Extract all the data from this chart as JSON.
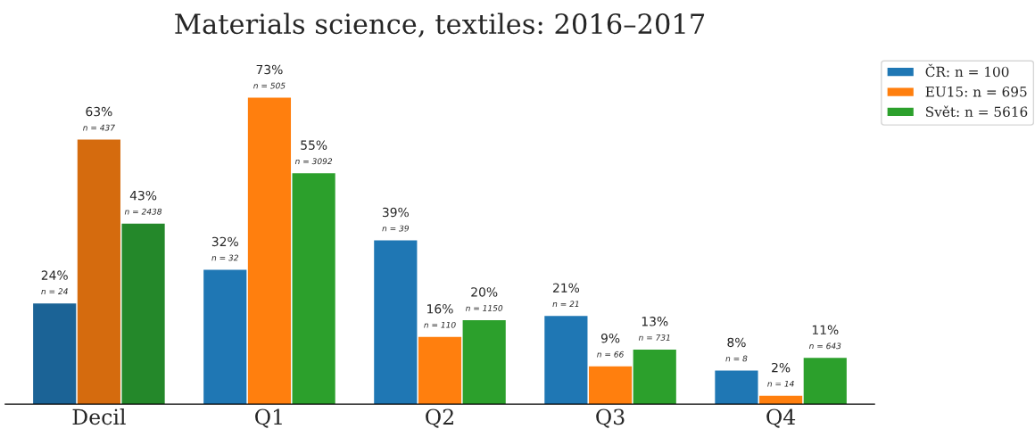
{
  "chart_data": {
    "type": "bar",
    "title": "Materials science, textiles: 2016–2017",
    "categories": [
      "Decil",
      "Q1",
      "Q2",
      "Q3",
      "Q4"
    ],
    "series": [
      {
        "name": "ČR: n = 100",
        "color": "#1f77b4",
        "colors": [
          "#1b6396",
          "#1f77b4",
          "#1f77b4",
          "#1f77b4",
          "#1f77b4"
        ],
        "values": [
          24,
          32,
          39,
          21,
          8
        ],
        "value_labels": [
          "24%\nn = 24",
          "32%\nn = 32",
          "39%\nn = 39",
          "21%\nn = 21",
          "8%\nn = 8"
        ]
      },
      {
        "name": "EU15: n = 695",
        "color": "#ff7f0e",
        "colors": [
          "#d56b0e",
          "#ff7f0e",
          "#ff7f0e",
          "#ff7f0e",
          "#ff7f0e"
        ],
        "values": [
          63,
          73,
          16,
          9,
          2
        ],
        "value_labels": [
          "63%\nn = 437",
          "73%\nn = 505",
          "16%\nn = 110",
          "9%\nn = 66",
          "2%\nn = 14"
        ]
      },
      {
        "name": "Svět: n = 5616",
        "color": "#2ca02c",
        "colors": [
          "#24882a",
          "#2ca02c",
          "#2ca02c",
          "#2ca02c",
          "#2ca02c"
        ],
        "values": [
          43,
          55,
          20,
          13,
          11
        ],
        "value_labels": [
          "43%\nn = 2438",
          "55%\nn = 3092",
          "20%\nn = 1150",
          "13%\nn = 731",
          "11%\nn = 643"
        ]
      }
    ],
    "legend": "top right",
    "grid": false,
    "tick_labels": "x"
  }
}
